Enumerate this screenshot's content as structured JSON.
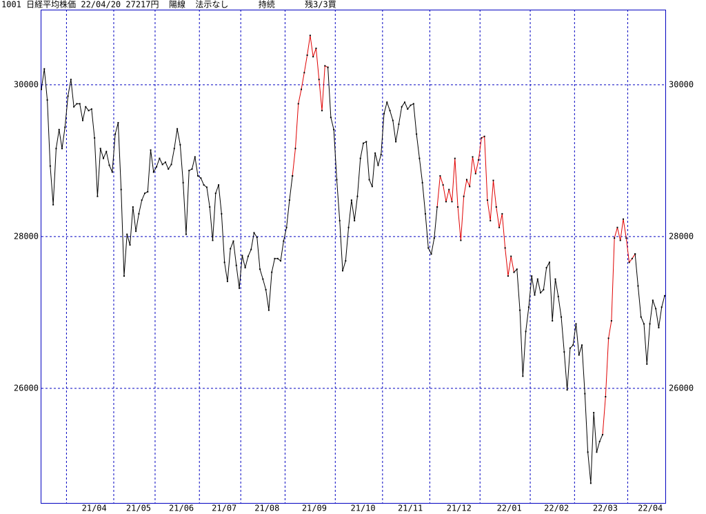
{
  "chart_data": {
    "type": "line",
    "title": "1001 日経平均株価 22/04/20 27217円  陽線  法示なし      持続      残3/3買",
    "ylim": [
      24490,
      30990
    ],
    "yticks": [
      26000,
      28000,
      30000
    ],
    "grid": true,
    "categories": [
      null,
      null,
      null,
      null,
      null,
      null,
      null,
      null,
      null,
      "21/04",
      null,
      null,
      null,
      null,
      null,
      null,
      null,
      null,
      null,
      null,
      null,
      null,
      null,
      null,
      null,
      "21/05",
      null,
      null,
      null,
      null,
      null,
      null,
      null,
      null,
      null,
      null,
      null,
      null,
      null,
      "21/06",
      null,
      null,
      null,
      null,
      null,
      null,
      null,
      null,
      null,
      null,
      null,
      null,
      null,
      null,
      "21/07",
      null,
      null,
      null,
      null,
      null,
      null,
      null,
      null,
      null,
      null,
      null,
      null,
      null,
      "21/08",
      null,
      null,
      null,
      null,
      null,
      null,
      null,
      null,
      null,
      null,
      null,
      null,
      null,
      null,
      "21/09",
      null,
      null,
      null,
      null,
      null,
      null,
      null,
      null,
      null,
      null,
      null,
      null,
      null,
      null,
      null,
      null,
      "21/10",
      null,
      null,
      null,
      null,
      null,
      null,
      null,
      null,
      null,
      null,
      null,
      null,
      null,
      null,
      null,
      "21/11",
      null,
      null,
      null,
      null,
      null,
      null,
      null,
      null,
      null,
      null,
      null,
      null,
      null,
      null,
      null,
      "21/12",
      null,
      null,
      null,
      null,
      null,
      null,
      null,
      null,
      null,
      null,
      null,
      null,
      null,
      null,
      null,
      null,
      "22/01",
      null,
      null,
      null,
      null,
      null,
      null,
      null,
      null,
      null,
      null,
      null,
      null,
      null,
      null,
      null,
      null,
      "22/02",
      null,
      null,
      null,
      null,
      null,
      null,
      null,
      null,
      null,
      null,
      null,
      null,
      null,
      null,
      "22/03",
      null,
      null,
      null,
      null,
      null,
      null,
      null,
      null,
      null,
      null,
      null,
      null,
      null,
      null,
      null,
      null,
      null,
      "22/04",
      null,
      null,
      null,
      null,
      null,
      null,
      null,
      null,
      null,
      null,
      null,
      null
    ],
    "series": [
      {
        "color": "#000000",
        "values": [
          29940,
          30210,
          29800,
          28930,
          28420,
          29160,
          29410,
          29160,
          29440,
          29850,
          30070,
          29710,
          29750,
          29750,
          29530,
          29710,
          29660,
          29680,
          29300,
          28530,
          29160,
          29030,
          29120,
          28940,
          28850,
          29350,
          29500,
          28620,
          27480,
          28030,
          27890,
          28390,
          28070,
          28300,
          28480,
          28570,
          28590,
          29140,
          28850,
          28920,
          29030,
          28950,
          28980,
          28890,
          28950,
          29160,
          29420,
          29210,
          28710,
          28030,
          28870,
          28890,
          29050,
          28800,
          28770,
          28680,
          28650,
          28390,
          27950,
          28570,
          28680,
          28300,
          27660,
          27410,
          27840,
          27940,
          27620,
          27320,
          27750,
          27590,
          27740,
          27830,
          28050,
          27990,
          27570,
          27440,
          27300,
          27030,
          27530,
          27710,
          27710,
          27680,
          27940,
          28120,
          28480,
          28800,
          null,
          null,
          null,
          null,
          null,
          null,
          null,
          null,
          null,
          null,
          null,
          30230,
          29570,
          29410,
          28750,
          28210,
          27550,
          27680,
          28120,
          28480,
          28210,
          28530,
          29030,
          29230,
          29250,
          28750,
          28660,
          29100,
          28940,
          29080,
          29620,
          29770,
          29660,
          29530,
          29250,
          29480,
          29710,
          29770,
          29680,
          29730,
          29750,
          29350,
          29030,
          28710,
          28300,
          27850,
          27770,
          27980,
          28390,
          null,
          null,
          null,
          null,
          null,
          null,
          null,
          null,
          null,
          null,
          null,
          null,
          null,
          null,
          null,
          null,
          null,
          null,
          null,
          null,
          null,
          null,
          null,
          null,
          null,
          27530,
          27570,
          27030,
          26160,
          26750,
          27070,
          27480,
          27230,
          27440,
          27260,
          27300,
          27590,
          27660,
          26890,
          27440,
          27210,
          26940,
          26480,
          25980,
          26530,
          26570,
          26850,
          26440,
          26570,
          25930,
          25160,
          24750,
          25680,
          25160,
          25300,
          25390,
          null,
          null,
          null,
          null,
          null,
          null,
          null,
          null,
          null,
          null,
          27770,
          27350,
          26940,
          26850,
          26320,
          26850,
          27160,
          27050,
          26800,
          27070,
          27220
        ]
      },
      {
        "color": "#e00000",
        "values": [
          null,
          null,
          null,
          null,
          null,
          null,
          null,
          null,
          null,
          null,
          null,
          null,
          null,
          null,
          null,
          null,
          null,
          null,
          null,
          null,
          null,
          null,
          null,
          null,
          null,
          null,
          null,
          null,
          null,
          null,
          null,
          null,
          null,
          null,
          null,
          null,
          null,
          null,
          null,
          null,
          null,
          null,
          null,
          null,
          null,
          null,
          null,
          null,
          null,
          null,
          null,
          null,
          null,
          null,
          null,
          null,
          null,
          null,
          null,
          null,
          null,
          null,
          null,
          null,
          null,
          null,
          null,
          null,
          null,
          null,
          null,
          null,
          null,
          null,
          null,
          null,
          null,
          null,
          null,
          null,
          null,
          null,
          null,
          null,
          null,
          28800,
          29160,
          29750,
          29940,
          30160,
          30390,
          30650,
          30370,
          30480,
          30070,
          29660,
          30250,
          30230,
          null,
          null,
          null,
          null,
          null,
          null,
          null,
          null,
          null,
          null,
          null,
          null,
          null,
          null,
          null,
          null,
          null,
          null,
          null,
          null,
          null,
          null,
          null,
          null,
          null,
          null,
          null,
          null,
          null,
          null,
          null,
          null,
          null,
          null,
          null,
          null,
          28390,
          28800,
          28680,
          28460,
          28620,
          28460,
          29030,
          28390,
          27950,
          28530,
          28750,
          28660,
          29050,
          28830,
          29010,
          29300,
          29320,
          28480,
          28210,
          28740,
          28390,
          28120,
          28300,
          27850,
          27480,
          27740,
          27530,
          null,
          null,
          null,
          null,
          null,
          null,
          null,
          null,
          null,
          null,
          null,
          null,
          null,
          null,
          null,
          null,
          null,
          null,
          null,
          null,
          null,
          null,
          null,
          null,
          null,
          null,
          null,
          null,
          null,
          25390,
          25890,
          26660,
          26890,
          27980,
          28120,
          27950,
          28230,
          27980,
          27660,
          27710,
          27770,
          null,
          null,
          null,
          null,
          null,
          null,
          null,
          null,
          null,
          null
        ]
      }
    ]
  }
}
